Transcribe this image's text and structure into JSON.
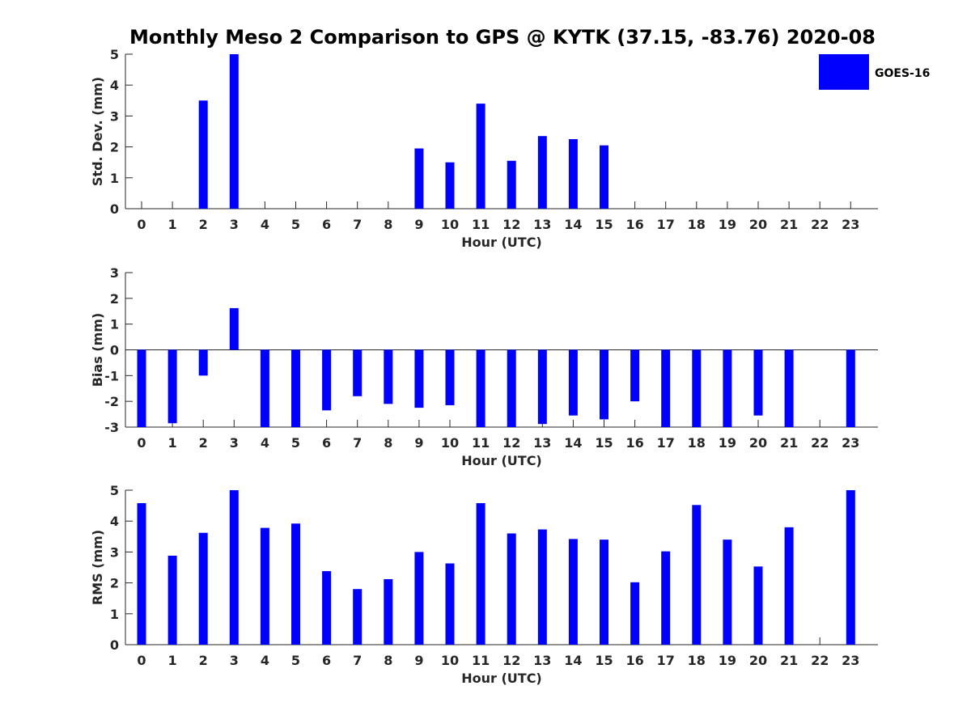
{
  "title": "Monthly Meso 2 Comparison to GPS @ KYTK (37.15, -83.76) 2020-08",
  "legend": {
    "label": "GOES-16",
    "color": "#0000FF"
  },
  "chart_data": [
    {
      "type": "bar",
      "ylabel": "Std. Dev. (mm)",
      "xlabel": "Hour (UTC)",
      "ylim": [
        0,
        5
      ],
      "yticks": [
        0,
        1,
        2,
        3,
        4,
        5
      ],
      "categories": [
        "0",
        "1",
        "2",
        "3",
        "4",
        "5",
        "6",
        "7",
        "8",
        "9",
        "10",
        "11",
        "12",
        "13",
        "14",
        "15",
        "16",
        "17",
        "18",
        "19",
        "20",
        "21",
        "22",
        "23"
      ],
      "series": [
        {
          "name": "GOES-16",
          "values": [
            null,
            null,
            3.5,
            5.0,
            null,
            null,
            null,
            null,
            null,
            1.95,
            1.5,
            3.4,
            1.55,
            2.35,
            2.25,
            2.05,
            null,
            null,
            null,
            null,
            null,
            null,
            null,
            null
          ]
        }
      ]
    },
    {
      "type": "bar",
      "ylabel": "Bias (mm)",
      "xlabel": "Hour (UTC)",
      "ylim": [
        -3,
        3
      ],
      "yticks": [
        -3,
        -2,
        -1,
        0,
        1,
        2,
        3
      ],
      "categories": [
        "0",
        "1",
        "2",
        "3",
        "4",
        "5",
        "6",
        "7",
        "8",
        "9",
        "10",
        "11",
        "12",
        "13",
        "14",
        "15",
        "16",
        "17",
        "18",
        "19",
        "20",
        "21",
        "22",
        "23"
      ],
      "series": [
        {
          "name": "GOES-16",
          "values": [
            -3.0,
            -2.85,
            -1.0,
            1.62,
            -3.0,
            -3.0,
            -2.35,
            -1.8,
            -2.1,
            -2.25,
            -2.15,
            -3.0,
            -3.0,
            -2.88,
            -2.55,
            -2.7,
            -2.0,
            -3.0,
            -3.0,
            -3.0,
            -2.55,
            -3.0,
            null,
            -3.0
          ]
        }
      ]
    },
    {
      "type": "bar",
      "ylabel": "RMS (mm)",
      "xlabel": "Hour (UTC)",
      "ylim": [
        0,
        5
      ],
      "yticks": [
        0,
        1,
        2,
        3,
        4,
        5
      ],
      "categories": [
        "0",
        "1",
        "2",
        "3",
        "4",
        "5",
        "6",
        "7",
        "8",
        "9",
        "10",
        "11",
        "12",
        "13",
        "14",
        "15",
        "16",
        "17",
        "18",
        "19",
        "20",
        "21",
        "22",
        "23"
      ],
      "series": [
        {
          "name": "GOES-16",
          "values": [
            4.58,
            2.88,
            3.62,
            5.0,
            3.78,
            3.92,
            2.38,
            1.8,
            2.12,
            3.0,
            2.63,
            4.58,
            3.6,
            3.73,
            3.42,
            3.4,
            2.02,
            3.02,
            4.52,
            3.4,
            2.53,
            3.8,
            null,
            5.0
          ]
        }
      ]
    }
  ]
}
